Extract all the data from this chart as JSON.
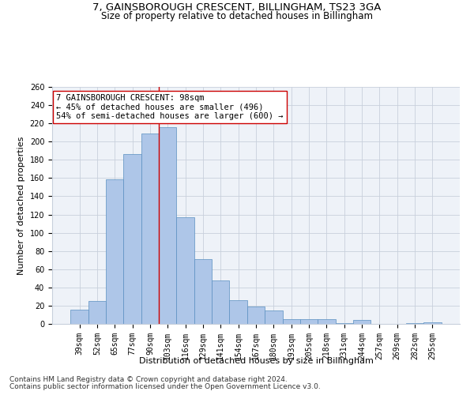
{
  "title1": "7, GAINSBOROUGH CRESCENT, BILLINGHAM, TS23 3GA",
  "title2": "Size of property relative to detached houses in Billingham",
  "xlabel": "Distribution of detached houses by size in Billingham",
  "ylabel": "Number of detached properties",
  "categories": [
    "39sqm",
    "52sqm",
    "65sqm",
    "77sqm",
    "90sqm",
    "103sqm",
    "116sqm",
    "129sqm",
    "141sqm",
    "154sqm",
    "167sqm",
    "180sqm",
    "193sqm",
    "205sqm",
    "218sqm",
    "231sqm",
    "244sqm",
    "257sqm",
    "269sqm",
    "282sqm",
    "295sqm"
  ],
  "values": [
    16,
    25,
    159,
    186,
    209,
    216,
    117,
    71,
    48,
    26,
    19,
    15,
    5,
    5,
    5,
    1,
    4,
    0,
    0,
    1,
    2
  ],
  "bar_color": "#aec6e8",
  "bar_edge_color": "#5a8fc0",
  "vline_x": 4.5,
  "vline_color": "#cc0000",
  "annotation_line1": "7 GAINSBOROUGH CRESCENT: 98sqm",
  "annotation_line2": "← 45% of detached houses are smaller (496)",
  "annotation_line3": "54% of semi-detached houses are larger (600) →",
  "annotation_box_color": "#ffffff",
  "annotation_box_edge": "#cc0000",
  "ylim": [
    0,
    260
  ],
  "yticks": [
    0,
    20,
    40,
    60,
    80,
    100,
    120,
    140,
    160,
    180,
    200,
    220,
    240,
    260
  ],
  "footnote1": "Contains HM Land Registry data © Crown copyright and database right 2024.",
  "footnote2": "Contains public sector information licensed under the Open Government Licence v3.0.",
  "background_color": "#eef2f8",
  "title1_fontsize": 9.5,
  "title2_fontsize": 8.5,
  "xlabel_fontsize": 8,
  "ylabel_fontsize": 8,
  "tick_fontsize": 7,
  "annotation_fontsize": 7.5,
  "footnote_fontsize": 6.5
}
